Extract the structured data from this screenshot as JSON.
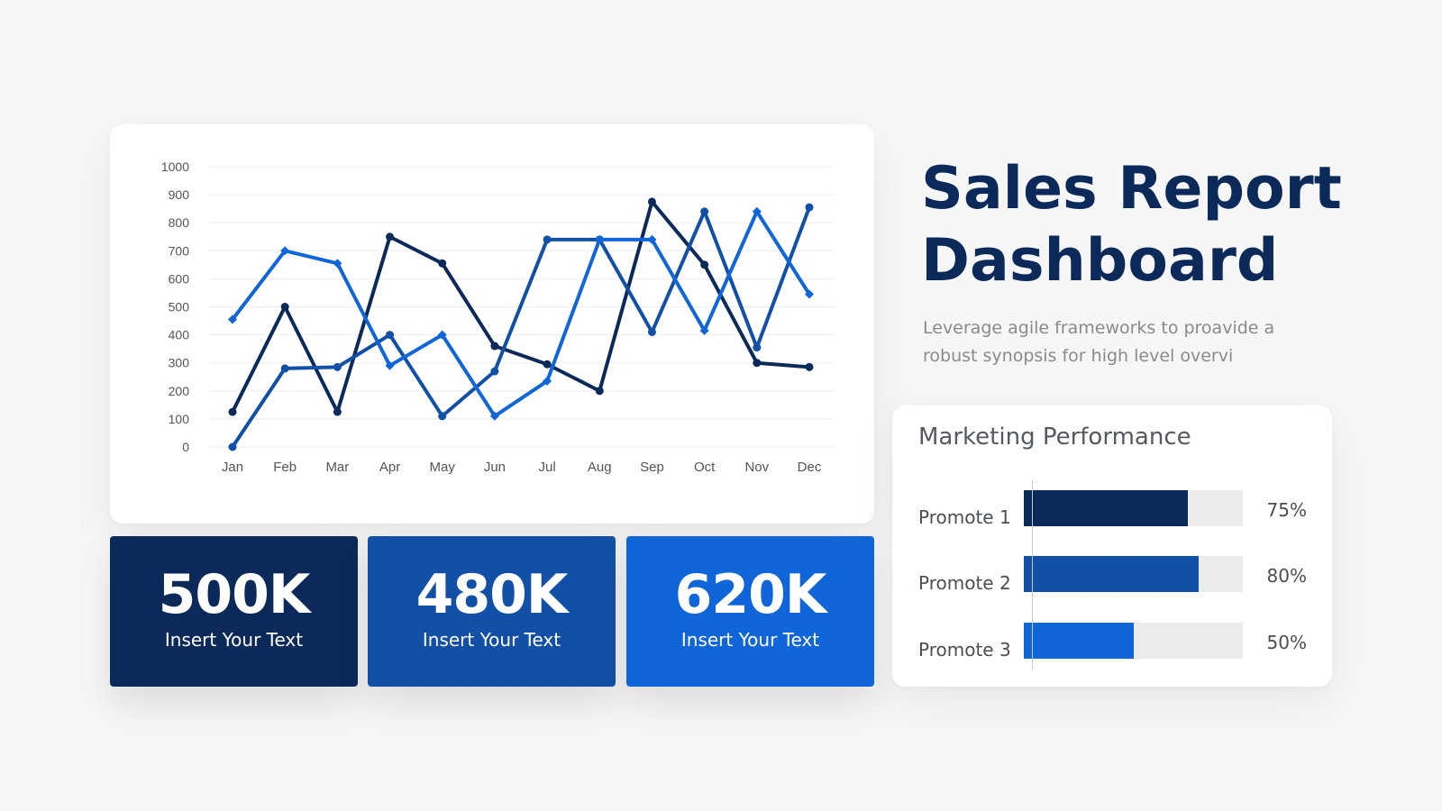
{
  "header": {
    "title_line1": "Sales Report",
    "title_line2": "Dashboard",
    "subtitle": "Leverage agile frameworks to proavide a robust synopsis for high level overvi"
  },
  "colors": {
    "navy": "#0b2a5a",
    "royal": "#1250a8",
    "bright": "#1066d9",
    "track": "#ebebeb"
  },
  "chart_data": {
    "type": "line",
    "categories": [
      "Jan",
      "Feb",
      "Mar",
      "Apr",
      "May",
      "Jun",
      "Jul",
      "Aug",
      "Sep",
      "Oct",
      "Nov",
      "Dec"
    ],
    "ylim": [
      0,
      1000
    ],
    "yticks": [
      0,
      100,
      200,
      300,
      400,
      500,
      600,
      700,
      800,
      900,
      1000
    ],
    "grid": true,
    "series": [
      {
        "color": "#0b2a5a",
        "marker": "circle",
        "values": [
          125,
          500,
          125,
          750,
          655,
          360,
          295,
          200,
          875,
          650,
          300,
          285
        ]
      },
      {
        "color": "#1250a8",
        "marker": "circle",
        "values": [
          0,
          280,
          285,
          400,
          110,
          270,
          740,
          740,
          410,
          840,
          355,
          855
        ]
      },
      {
        "color": "#1066d9",
        "marker": "diamond",
        "values": [
          455,
          700,
          655,
          290,
          400,
          110,
          235,
          740,
          740,
          415,
          840,
          545
        ]
      }
    ]
  },
  "stats": [
    {
      "value": "500K",
      "label": "Insert Your Text",
      "color": "#0b2a5a"
    },
    {
      "value": "480K",
      "label": "Insert Your Text",
      "color": "#1250a8"
    },
    {
      "value": "620K",
      "label": "Insert Your Text",
      "color": "#1066d9"
    }
  ],
  "marketing": {
    "title": "Marketing Performance",
    "items": [
      {
        "label": "Promote 1",
        "percent": 75,
        "percent_label": "75%",
        "color": "#0b2a5a"
      },
      {
        "label": "Promote 2",
        "percent": 80,
        "percent_label": "80%",
        "color": "#1250a8"
      },
      {
        "label": "Promote 3",
        "percent": 50,
        "percent_label": "50%",
        "color": "#1066d9"
      }
    ]
  }
}
